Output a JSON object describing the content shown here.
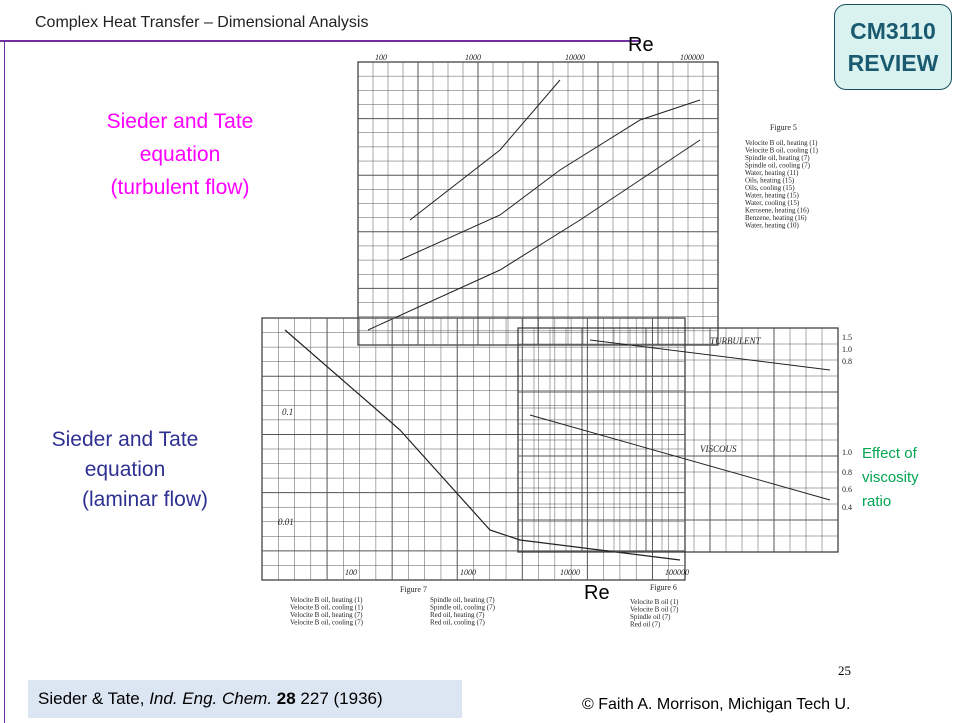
{
  "header": {
    "title": "Complex Heat Transfer – Dimensional Analysis",
    "badge": [
      "CM3110",
      "REVIEW"
    ]
  },
  "labels": {
    "turbulent": [
      "Sieder and Tate",
      "equation",
      "(turbulent flow)"
    ],
    "laminar": [
      "Sieder and Tate",
      "equation",
      "(laminar flow)"
    ],
    "viscosity": [
      "Effect of",
      "viscosity",
      "ratio"
    ],
    "re_top": "Re",
    "re_bottom": "Re"
  },
  "figures": [
    {
      "caption": "Figure 5",
      "ticks": [
        "100",
        "1000",
        "10000",
        "100000"
      ],
      "legend": [
        "Velocite B oil, heating (1)",
        "Velocite B oil, cooling (1)",
        "Spindle oil, heating (7)",
        "Spindle oil, cooling (7)",
        "Water, heating (11)",
        "Oils, heating (15)",
        "Oils, cooling (15)",
        "Water, heating (15)",
        "Water, cooling (15)",
        "Kerosene, heating (16)",
        "Benzene, heating (16)",
        "Water, heating (10)"
      ]
    },
    {
      "caption": "Figure 6",
      "notes": [
        "TURBULENT",
        "VISCOUS"
      ],
      "ticks": [
        "1.5",
        "1.0",
        "0.8",
        "1.0",
        "0.8",
        "0.6",
        "0.4"
      ],
      "legend": [
        "Velocite B oil (1)",
        "Velocite B oil (7)",
        "Spindle oil (7)",
        "Red oil (7)"
      ]
    },
    {
      "caption": "Figure 7",
      "ticks": [
        "100",
        "1000",
        "10000",
        "100000"
      ],
      "yticks": [
        "0.1",
        "0.01"
      ],
      "legend": [
        "Velocite B oil, heating (1)",
        "Velocite B oil, cooling (1)",
        "Velocite B oil, heating (7)",
        "Velocite B oil, cooling (7)",
        "Spindle oil, heating (7)",
        "Spindle oil, cooling (7)",
        "Red oil, heating (7)",
        "Red oil, cooling (7)"
      ]
    }
  ],
  "footer": {
    "citation": {
      "authors": "Sieder & Tate, ",
      "journal": "Ind. Eng. Chem.",
      "volume": "28",
      "rest": " 227 (1936)"
    },
    "page": "25",
    "copyright": "© Faith A. Morrison, Michigan Tech U."
  }
}
